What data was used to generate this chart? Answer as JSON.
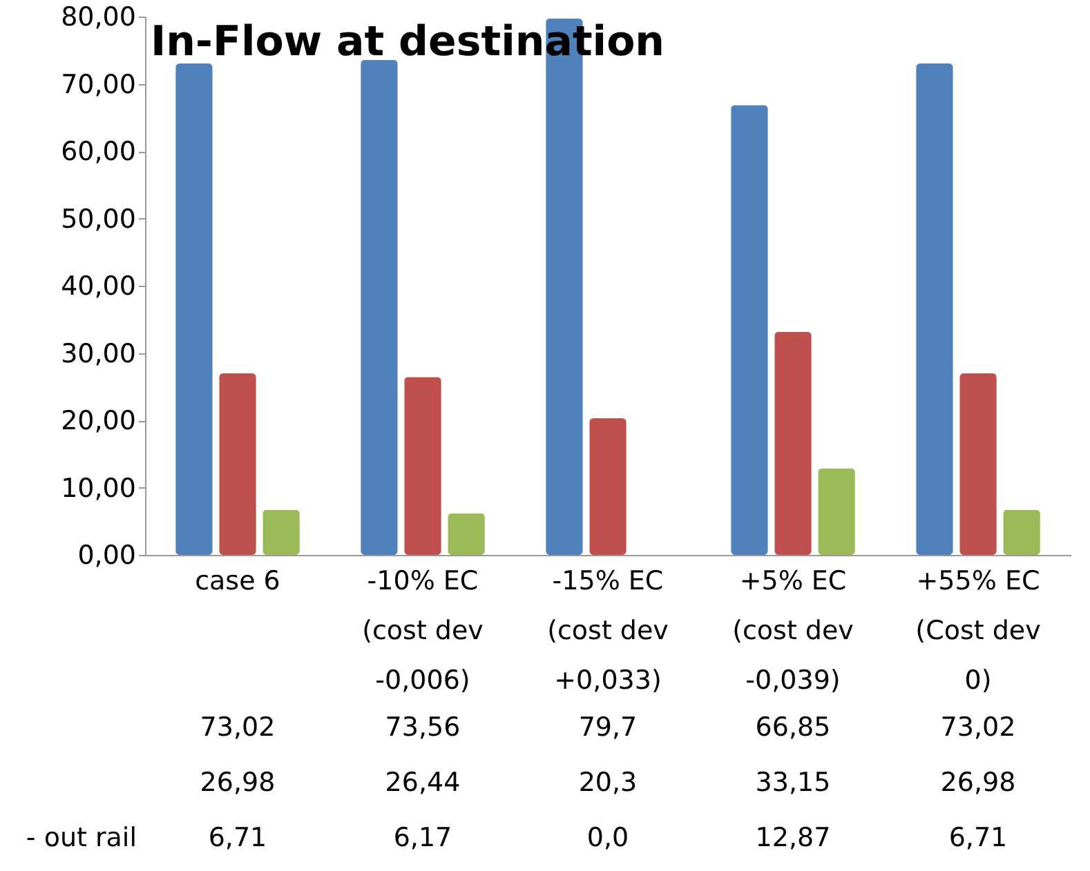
{
  "chart_data": {
    "type": "bar",
    "title": "In-Flow at destination",
    "categories": [
      "case 6",
      "-10% EC\n(cost dev\n-0,006)",
      "-15% EC\n(cost dev\n+0,033)",
      "+5% EC\n(cost dev\n-0,039)",
      "+55% EC\n(Cost dev\n0)"
    ],
    "series": [
      {
        "color": "#4f81bd",
        "values": [
          73.02,
          73.56,
          79.7,
          66.85,
          73.02
        ],
        "value_labels": [
          "73,02",
          "73,56",
          "79,7",
          "66,85",
          "73,02"
        ]
      },
      {
        "color": "#c0504d",
        "values": [
          26.98,
          26.44,
          20.3,
          33.15,
          26.98
        ],
        "value_labels": [
          "26,98",
          "26,44",
          "20,3",
          "33,15",
          "26,98"
        ]
      },
      {
        "name": "- out rail",
        "color": "#9bbb59",
        "values": [
          6.71,
          6.17,
          0.0,
          12.87,
          6.71
        ],
        "value_labels": [
          "6,71",
          "6,17",
          "0,0",
          "12,87",
          "6,71"
        ]
      }
    ],
    "ylim": [
      0,
      80
    ],
    "yticks": [
      {
        "value": 0,
        "label": "0,00"
      },
      {
        "value": 10,
        "label": "10,00"
      },
      {
        "value": 20,
        "label": "20,00"
      },
      {
        "value": 30,
        "label": "30,00"
      },
      {
        "value": 40,
        "label": "40,00"
      },
      {
        "value": 50,
        "label": "50,00"
      },
      {
        "value": 60,
        "label": "60,00"
      },
      {
        "value": 70,
        "label": "70,00"
      },
      {
        "value": 80,
        "label": "80,00"
      }
    ],
    "grid": false
  }
}
